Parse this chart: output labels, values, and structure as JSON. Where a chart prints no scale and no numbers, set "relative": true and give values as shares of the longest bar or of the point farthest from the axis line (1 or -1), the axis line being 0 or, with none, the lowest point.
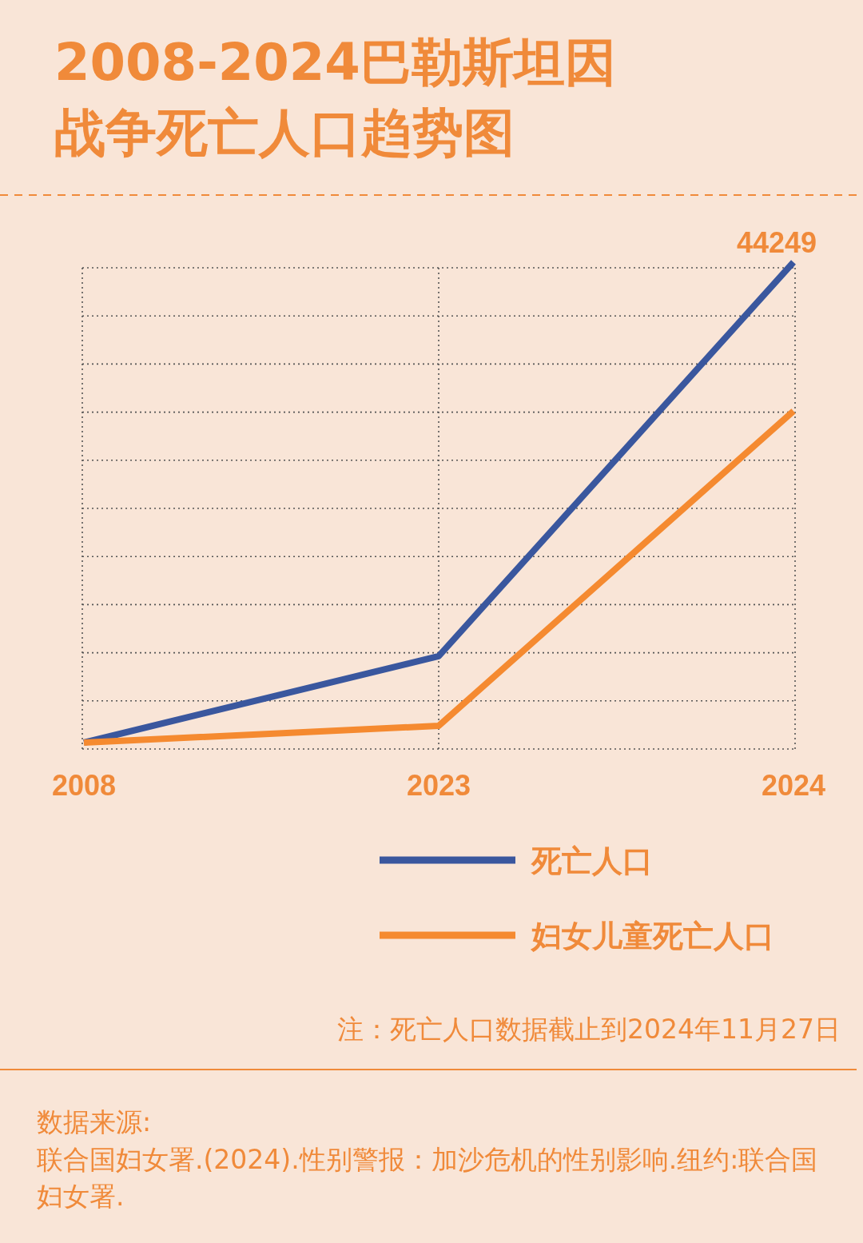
{
  "chart_data": {
    "type": "line",
    "title": "2008-2024巴勒斯坦因战争死亡人口趋势图",
    "categories": [
      "2008",
      "2023",
      "2024"
    ],
    "relative": true,
    "series": [
      {
        "name": "死亡人口",
        "color": "#3a579e",
        "values": [
          0,
          0.18,
          1
        ]
      },
      {
        "name": "妇女儿童死亡人口",
        "color": "#f58a30",
        "values": [
          0,
          0.035,
          0.69
        ]
      }
    ],
    "annotations": [
      {
        "text": "44249",
        "x": "2024",
        "y": 1
      },
      "注：死亡人口数据截止到2024年11月27日",
      "数据来源:",
      "联合国妇女署.(2024).性别警报：加沙危机的性别影响.纽约:联合国妇女署."
    ],
    "grid": true,
    "legend": "bottom",
    "marker": "none",
    "line_style": "solid"
  }
}
